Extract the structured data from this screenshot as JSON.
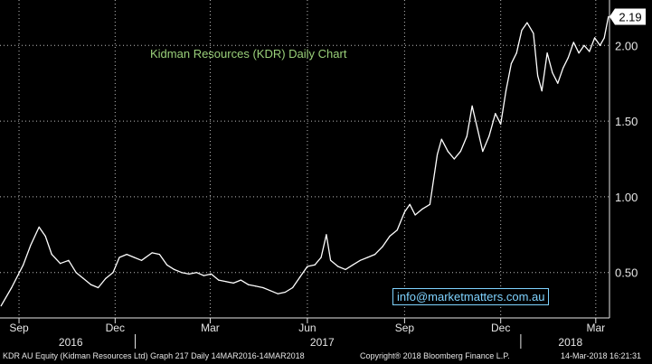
{
  "chart_data": {
    "type": "line",
    "title": "Kidman Resources (KDR) Daily Chart",
    "y_ticks": [
      "0.50",
      "1.00",
      "1.50",
      "2.00"
    ],
    "y_tick_values": [
      0.5,
      1.0,
      1.5,
      2.0
    ],
    "ylim": [
      0.2,
      2.3
    ],
    "x_ticks": [
      "Sep",
      "Dec",
      "Mar",
      "Jun",
      "Sep",
      "Dec",
      "Mar"
    ],
    "x_tick_values": [
      "2016-09-01",
      "2016-12-01",
      "2017-03-01",
      "2017-06-01",
      "2017-09-01",
      "2017-12-01",
      "2018-03-01"
    ],
    "year_labels": [
      "2016",
      "2017",
      "2018"
    ],
    "year_label_dates": [
      "2016-10-20",
      "2017-06-15",
      "2018-02-05"
    ],
    "year_separators": [
      "2016-12-20",
      "2017-12-20"
    ],
    "xlim": [
      "2016-08-14",
      "2018-03-14"
    ],
    "last_value": "2.19",
    "grid": true,
    "series": [
      {
        "color": "#ffffff",
        "points": [
          [
            "2016-08-15",
            0.28
          ],
          [
            "2016-08-25",
            0.4
          ],
          [
            "2016-09-05",
            0.55
          ],
          [
            "2016-09-12",
            0.68
          ],
          [
            "2016-09-20",
            0.8
          ],
          [
            "2016-09-26",
            0.74
          ],
          [
            "2016-10-02",
            0.62
          ],
          [
            "2016-10-10",
            0.56
          ],
          [
            "2016-10-18",
            0.58
          ],
          [
            "2016-10-25",
            0.5
          ],
          [
            "2016-11-01",
            0.46
          ],
          [
            "2016-11-08",
            0.42
          ],
          [
            "2016-11-15",
            0.4
          ],
          [
            "2016-11-22",
            0.46
          ],
          [
            "2016-11-29",
            0.5
          ],
          [
            "2016-12-05",
            0.6
          ],
          [
            "2016-12-12",
            0.62
          ],
          [
            "2016-12-19",
            0.6
          ],
          [
            "2016-12-26",
            0.58
          ],
          [
            "2017-01-05",
            0.63
          ],
          [
            "2017-01-12",
            0.62
          ],
          [
            "2017-01-19",
            0.55
          ],
          [
            "2017-01-26",
            0.52
          ],
          [
            "2017-02-02",
            0.5
          ],
          [
            "2017-02-09",
            0.49
          ],
          [
            "2017-02-16",
            0.5
          ],
          [
            "2017-02-23",
            0.48
          ],
          [
            "2017-03-02",
            0.49
          ],
          [
            "2017-03-09",
            0.45
          ],
          [
            "2017-03-16",
            0.44
          ],
          [
            "2017-03-23",
            0.43
          ],
          [
            "2017-03-30",
            0.45
          ],
          [
            "2017-04-06",
            0.42
          ],
          [
            "2017-04-13",
            0.41
          ],
          [
            "2017-04-20",
            0.4
          ],
          [
            "2017-04-27",
            0.38
          ],
          [
            "2017-05-04",
            0.36
          ],
          [
            "2017-05-11",
            0.37
          ],
          [
            "2017-05-18",
            0.4
          ],
          [
            "2017-05-25",
            0.47
          ],
          [
            "2017-06-01",
            0.54
          ],
          [
            "2017-06-08",
            0.55
          ],
          [
            "2017-06-14",
            0.6
          ],
          [
            "2017-06-19",
            0.75
          ],
          [
            "2017-06-23",
            0.58
          ],
          [
            "2017-06-30",
            0.54
          ],
          [
            "2017-07-07",
            0.52
          ],
          [
            "2017-07-14",
            0.55
          ],
          [
            "2017-07-21",
            0.58
          ],
          [
            "2017-07-28",
            0.6
          ],
          [
            "2017-08-04",
            0.62
          ],
          [
            "2017-08-11",
            0.67
          ],
          [
            "2017-08-18",
            0.74
          ],
          [
            "2017-08-25",
            0.78
          ],
          [
            "2017-09-01",
            0.9
          ],
          [
            "2017-09-06",
            0.95
          ],
          [
            "2017-09-11",
            0.88
          ],
          [
            "2017-09-18",
            0.92
          ],
          [
            "2017-09-25",
            0.95
          ],
          [
            "2017-10-02",
            1.28
          ],
          [
            "2017-10-06",
            1.38
          ],
          [
            "2017-10-12",
            1.3
          ],
          [
            "2017-10-18",
            1.25
          ],
          [
            "2017-10-24",
            1.3
          ],
          [
            "2017-10-30",
            1.4
          ],
          [
            "2017-11-04",
            1.6
          ],
          [
            "2017-11-09",
            1.45
          ],
          [
            "2017-11-14",
            1.3
          ],
          [
            "2017-11-20",
            1.4
          ],
          [
            "2017-11-26",
            1.55
          ],
          [
            "2017-12-01",
            1.48
          ],
          [
            "2017-12-06",
            1.7
          ],
          [
            "2017-12-11",
            1.88
          ],
          [
            "2017-12-16",
            1.95
          ],
          [
            "2017-12-21",
            2.1
          ],
          [
            "2017-12-26",
            2.15
          ],
          [
            "2018-01-01",
            2.08
          ],
          [
            "2018-01-05",
            1.8
          ],
          [
            "2018-01-09",
            1.7
          ],
          [
            "2018-01-14",
            1.95
          ],
          [
            "2018-01-19",
            1.82
          ],
          [
            "2018-01-24",
            1.75
          ],
          [
            "2018-01-29",
            1.85
          ],
          [
            "2018-02-03",
            1.92
          ],
          [
            "2018-02-08",
            2.02
          ],
          [
            "2018-02-13",
            1.95
          ],
          [
            "2018-02-18",
            2.0
          ],
          [
            "2018-02-23",
            1.96
          ],
          [
            "2018-02-28",
            2.05
          ],
          [
            "2018-03-05",
            2.0
          ],
          [
            "2018-03-09",
            2.05
          ],
          [
            "2018-03-13",
            2.19
          ]
        ]
      }
    ]
  },
  "email": "info@marketmatters.com.au",
  "footer": {
    "left": "KDR AU Equity (Kidman Resources Ltd) Graph 217  Daily 14MAR2016-14MAR2018",
    "center": "Copyright® 2018 Bloomberg Finance L.P.",
    "right": "14-Mar-2018 16:21:31"
  },
  "colors": {
    "background": "#000000",
    "line": "#ffffff",
    "grid": "#bdbdbd",
    "title": "#9ad07a",
    "email": "#7fd3ff"
  }
}
